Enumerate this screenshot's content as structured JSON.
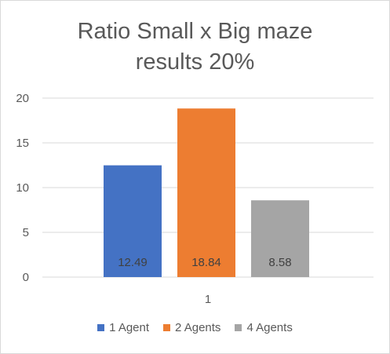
{
  "chart_data": {
    "type": "bar",
    "title": "Ratio Small x Big maze results 20%",
    "title_lines": [
      "Ratio Small x Big maze",
      "results 20%"
    ],
    "categories": [
      "1"
    ],
    "series": [
      {
        "name": "1 Agent",
        "values": [
          12.49
        ],
        "label": "12.49",
        "color": "#4472c4"
      },
      {
        "name": "2 Agents",
        "values": [
          18.84
        ],
        "label": "18.84",
        "color": "#ed7d31"
      },
      {
        "name": "4 Agents",
        "values": [
          8.58
        ],
        "label": "8.58",
        "color": "#a5a5a5"
      }
    ],
    "ylim": [
      0,
      20
    ],
    "yticks": [
      "0",
      "5",
      "10",
      "15",
      "20"
    ],
    "ytick_values": [
      0,
      5,
      10,
      15,
      20
    ],
    "grid": true,
    "legend_position": "bottom",
    "xlabel": "",
    "ylabel": ""
  },
  "colors": {
    "gridline": "#d9d9d9",
    "text": "#595959",
    "data_label": "#404040"
  }
}
